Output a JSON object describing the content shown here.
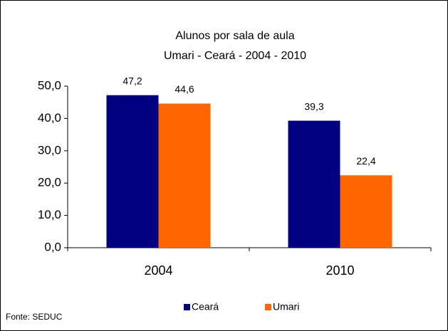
{
  "chart_data": {
    "type": "bar",
    "title": "Alunos por sala de aula",
    "subtitle": "Umari - Ceará - 2004 - 2010",
    "categories": [
      "2004",
      "2010"
    ],
    "series": [
      {
        "name": "Ceará",
        "color": "#000080",
        "values": [
          47.2,
          39.3
        ],
        "value_labels": [
          "47,2",
          "39,3"
        ]
      },
      {
        "name": "Umari",
        "color": "#ff6600",
        "values": [
          44.6,
          22.4
        ],
        "value_labels": [
          "44,6",
          "22,4"
        ]
      }
    ],
    "ylim": [
      0,
      50
    ],
    "yticks": [
      {
        "value": 0,
        "label": "0,0"
      },
      {
        "value": 10,
        "label": "10,0"
      },
      {
        "value": 20,
        "label": "20,0"
      },
      {
        "value": 30,
        "label": "30,0"
      },
      {
        "value": 40,
        "label": "40,0"
      },
      {
        "value": 50,
        "label": "50,0"
      }
    ],
    "legend": "bottom",
    "source": "Fonte: SEDUC"
  }
}
